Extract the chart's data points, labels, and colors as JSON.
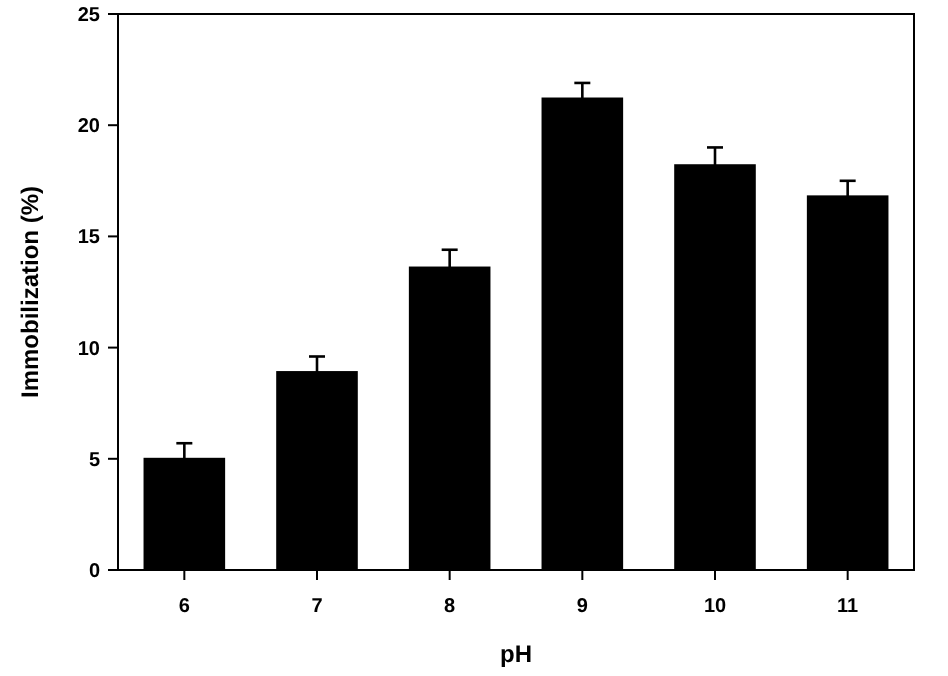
{
  "chart_data": {
    "type": "bar",
    "xlabel": "pH",
    "ylabel": "Immobilization (%)",
    "categories": [
      "6",
      "7",
      "8",
      "9",
      "10",
      "11"
    ],
    "values": [
      5.0,
      8.9,
      13.6,
      21.2,
      18.2,
      16.8
    ],
    "errors": [
      0.7,
      0.7,
      0.8,
      0.7,
      0.8,
      0.7
    ],
    "color": "#000000",
    "ylim": [
      0,
      25
    ],
    "yticks": [
      0,
      5,
      10,
      15,
      20,
      25
    ],
    "grid": false
  }
}
